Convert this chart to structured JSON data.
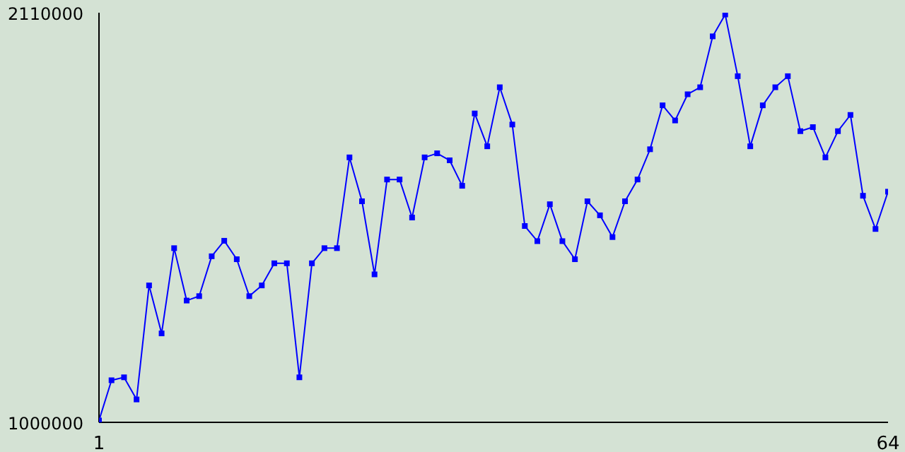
{
  "chart_data": {
    "type": "line",
    "x": [
      1,
      2,
      3,
      4,
      5,
      6,
      7,
      8,
      9,
      10,
      11,
      12,
      13,
      14,
      15,
      16,
      17,
      18,
      19,
      20,
      21,
      22,
      23,
      24,
      25,
      26,
      27,
      28,
      29,
      30,
      31,
      32,
      33,
      34,
      35,
      36,
      37,
      38,
      39,
      40,
      41,
      42,
      43,
      44,
      45,
      46,
      47,
      48,
      49,
      50,
      51,
      52,
      53,
      54,
      55,
      56,
      57,
      58,
      59,
      60,
      61,
      62,
      63,
      64
    ],
    "series": [
      {
        "color": "#0000ff",
        "values": [
          1005000,
          1114000,
          1122000,
          1062000,
          1371000,
          1241000,
          1472000,
          1330000,
          1342000,
          1450000,
          1492000,
          1442000,
          1342000,
          1371000,
          1431000,
          1431000,
          1122000,
          1431000,
          1472000,
          1472000,
          1718000,
          1599000,
          1401000,
          1658000,
          1658000,
          1555000,
          1718000,
          1729000,
          1710000,
          1641000,
          1837000,
          1748000,
          1908000,
          1807000,
          1532000,
          1491000,
          1591000,
          1491000,
          1442000,
          1599000,
          1561000,
          1502000,
          1599000,
          1658000,
          1740000,
          1859000,
          1818000,
          1889000,
          1908000,
          2046000,
          2105000,
          1938000,
          1748000,
          1859000,
          1908000,
          1938000,
          1789000,
          1800000,
          1718000,
          1789000,
          1833000,
          1614000,
          1524000,
          1625000
        ]
      }
    ],
    "xlim": [
      1,
      64
    ],
    "xticks": [
      1,
      64
    ],
    "ylim": [
      1000000,
      2110000
    ],
    "yticks": [
      1000000,
      2110000
    ],
    "marker": "square",
    "line_style": "solid",
    "grid": false
  }
}
